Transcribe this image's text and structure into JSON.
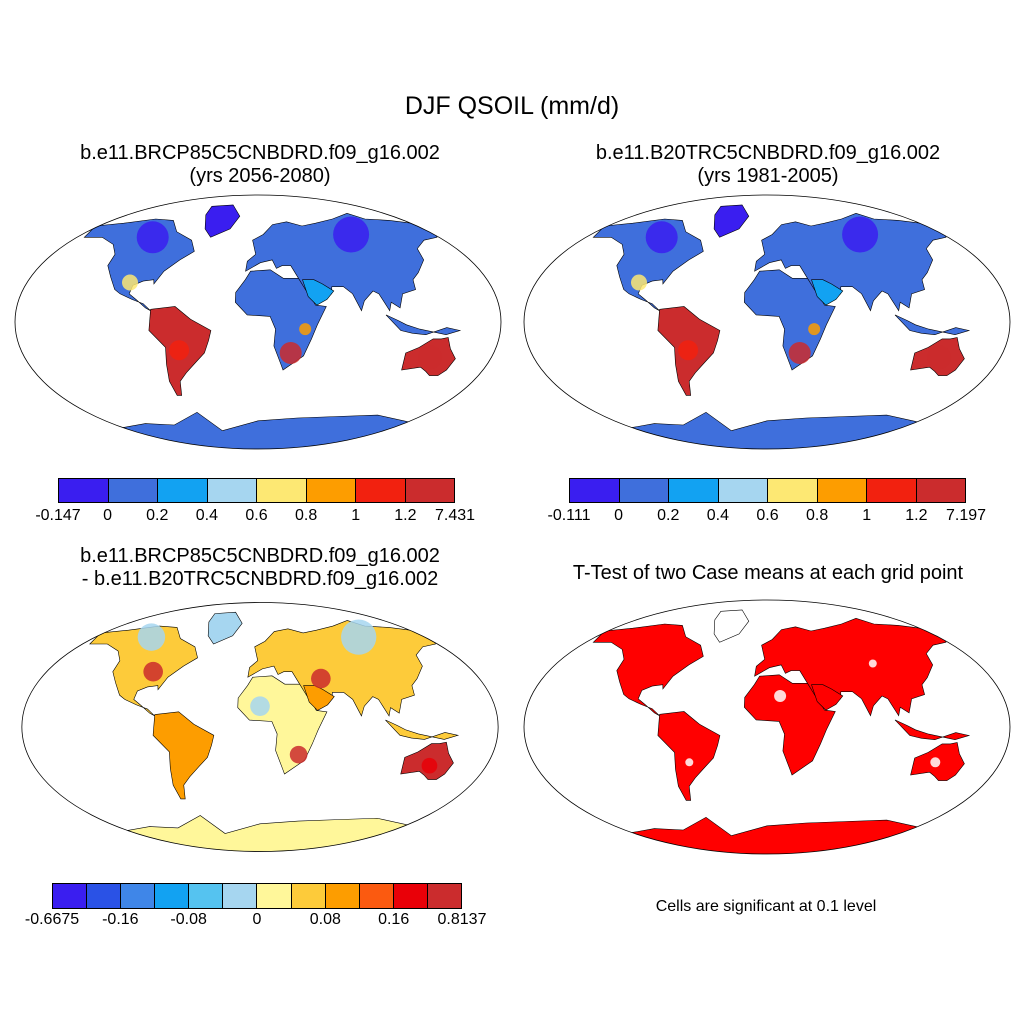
{
  "title": "DJF QSOIL (mm/d)",
  "colors": {
    "land_default": "#3f6fdc",
    "ocean": "#ffffff",
    "outline": "#000000",
    "coast": "#000000"
  },
  "panels": [
    {
      "id": "p1",
      "title_line1": "b.e11.BRCP85C5CNBDRD.f09_g16.002",
      "title_line2": "(yrs 2056-2080)",
      "colorbar": {
        "colors": [
          "#3a1ef0",
          "#3f6fdc",
          "#12a2f2",
          "#a6d6f0",
          "#fde873",
          "#fd9d00",
          "#f2210f",
          "#cb2c2d"
        ],
        "labels": [
          "-0.147",
          "0",
          "0.2",
          "0.4",
          "0.6",
          "0.8",
          "1",
          "1.2",
          "7.431"
        ]
      }
    },
    {
      "id": "p2",
      "title_line1": "b.e11.B20TRC5CNBDRD.f09_g16.002",
      "title_line2": "(yrs 1981-2005)",
      "colorbar": {
        "colors": [
          "#3a1ef0",
          "#3f6fdc",
          "#12a2f2",
          "#a6d6f0",
          "#fde873",
          "#fd9d00",
          "#f2210f",
          "#cb2c2d"
        ],
        "labels": [
          "-0.111",
          "0",
          "0.2",
          "0.4",
          "0.6",
          "0.8",
          "1",
          "1.2",
          "7.197"
        ]
      }
    },
    {
      "id": "p3",
      "title_line1": "b.e11.BRCP85C5CNBDRD.f09_g16.002",
      "title_line2": "- b.e11.B20TRC5CNBDRD.f09_g16.002",
      "colorbar": {
        "colors": [
          "#3a1ef0",
          "#2a52e6",
          "#3f86e8",
          "#12a2f2",
          "#55c3f0",
          "#a6d6f0",
          "#fff79a",
          "#fdcb3a",
          "#fd9d00",
          "#fb5a10",
          "#e90008",
          "#cb2c2d"
        ],
        "labels": [
          "-0.6675",
          "-0.16",
          "-0.08",
          "0",
          "0.08",
          "0.16",
          "0.8137"
        ],
        "label_every_other": true
      }
    },
    {
      "id": "p4",
      "title_line1": "T-Test of two Case means at each grid point",
      "note": "Cells are significant at 0.1 level",
      "fill": "#ff0000"
    }
  ]
}
